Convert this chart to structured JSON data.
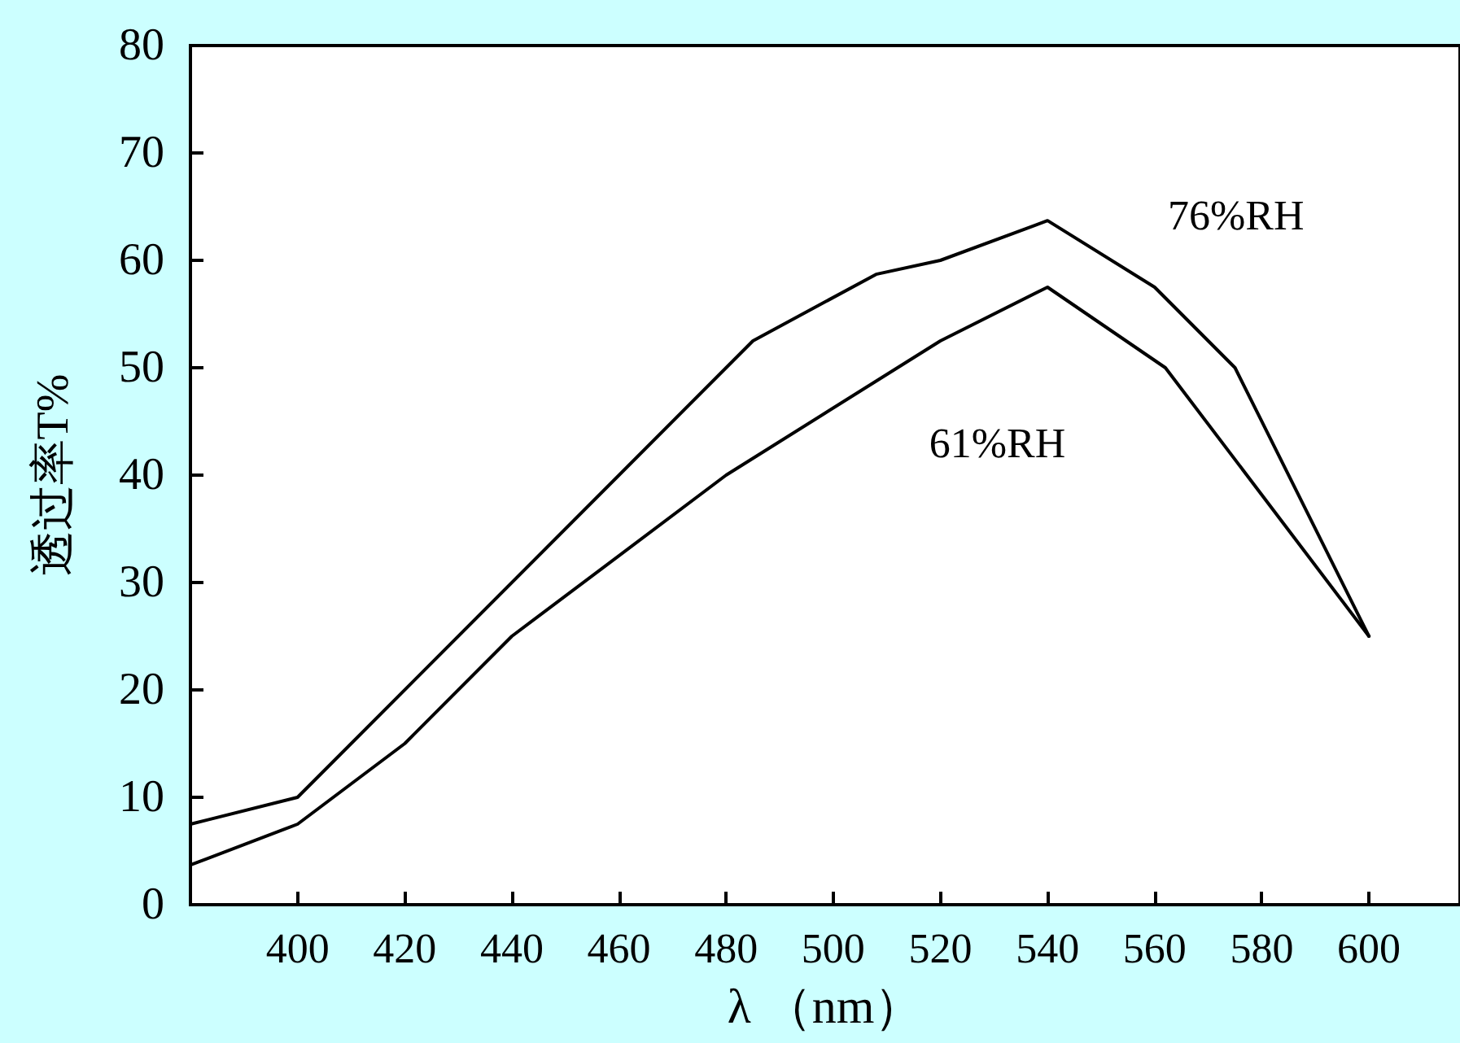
{
  "chart_data": {
    "type": "line",
    "xlabel": "λ （nm）",
    "ylabel": "透过率T%",
    "xlim": [
      380,
      617
    ],
    "xticks": [
      400,
      420,
      440,
      460,
      480,
      500,
      520,
      540,
      560,
      580,
      600
    ],
    "ylim": [
      0,
      80
    ],
    "yticks": [
      0,
      10,
      20,
      30,
      40,
      50,
      60,
      70,
      80
    ],
    "grid": false,
    "legend": false,
    "marker": "none",
    "line_style": "solid",
    "series": [
      {
        "name": "76%RH",
        "color": "#000000",
        "x": [
          380,
          400,
          485,
          508,
          520,
          540,
          560,
          575,
          600
        ],
        "values": [
          7.5,
          10,
          52.5,
          58.7,
          60,
          63.7,
          57.5,
          50,
          25
        ]
      },
      {
        "name": "61%RH",
        "color": "#000000",
        "x": [
          380,
          400,
          420,
          440,
          480,
          520,
          540,
          562,
          600
        ],
        "values": [
          3.7,
          7.5,
          15,
          25,
          40,
          52.5,
          57.5,
          50,
          25
        ]
      }
    ]
  }
}
